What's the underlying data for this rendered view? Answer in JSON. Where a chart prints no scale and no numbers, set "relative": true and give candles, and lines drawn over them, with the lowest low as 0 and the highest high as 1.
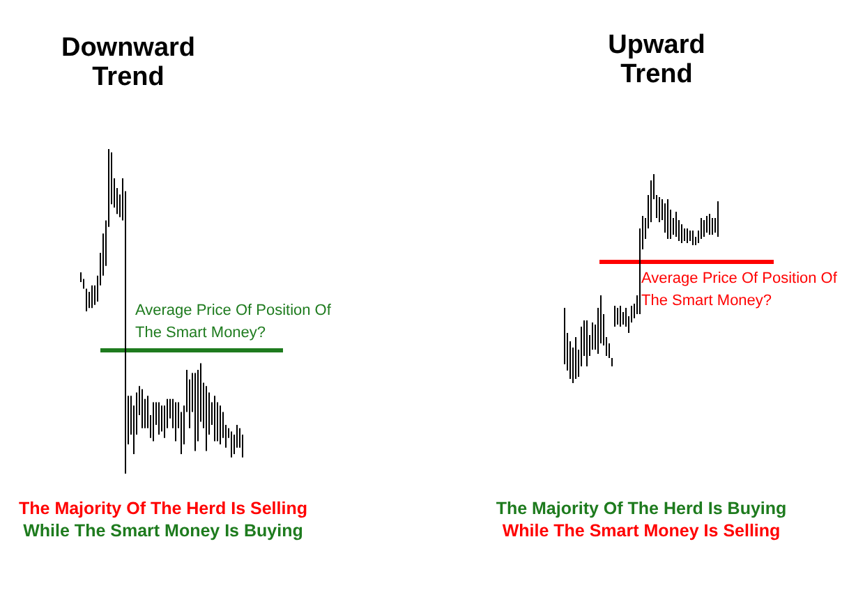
{
  "chart_data": [
    {
      "type": "candlestick",
      "title": "Downward Trend",
      "relative": true,
      "color": "#000000",
      "categories": [
        null,
        null,
        null,
        null,
        null,
        null,
        null,
        null,
        null,
        null,
        null,
        null,
        null,
        null,
        null,
        null,
        null,
        null,
        null,
        null,
        null,
        null,
        null,
        null,
        null,
        null,
        null,
        null,
        null,
        null,
        null,
        null,
        null,
        null,
        null,
        null,
        null,
        null,
        null,
        null,
        null,
        null,
        null,
        null,
        null,
        null,
        null,
        null,
        null,
        null,
        null,
        null,
        null,
        null,
        null,
        null,
        null,
        null,
        null
      ],
      "ohlc": [
        [
          0.59,
          0.62,
          0.59,
          0.62
        ],
        [
          0.57,
          0.6,
          0.57,
          0.6
        ],
        [
          0.5,
          0.57,
          0.5,
          0.57
        ],
        [
          0.51,
          0.56,
          0.51,
          0.56
        ],
        [
          0.51,
          0.58,
          0.51,
          0.58
        ],
        [
          0.52,
          0.58,
          0.52,
          0.58
        ],
        [
          0.53,
          0.61,
          0.53,
          0.61
        ],
        [
          0.58,
          0.68,
          0.58,
          0.68
        ],
        [
          0.61,
          0.74,
          0.61,
          0.74
        ],
        [
          0.64,
          0.78,
          0.64,
          0.78
        ],
        [
          0.76,
          1.0,
          0.76,
          1.0
        ],
        [
          0.83,
          0.99,
          0.83,
          0.99
        ],
        [
          0.82,
          0.91,
          0.82,
          0.91
        ],
        [
          0.8,
          0.88,
          0.8,
          0.88
        ],
        [
          0.79,
          0.86,
          0.79,
          0.86
        ],
        [
          0.78,
          0.91,
          0.78,
          0.91
        ],
        [
          0.0,
          0.87,
          0.0,
          0.87
        ],
        [
          0.09,
          0.24,
          0.09,
          0.24
        ],
        [
          0.12,
          0.24,
          0.12,
          0.24
        ],
        [
          0.06,
          0.21,
          0.06,
          0.21
        ],
        [
          0.12,
          0.25,
          0.12,
          0.25
        ],
        [
          0.18,
          0.27,
          0.18,
          0.27
        ],
        [
          0.14,
          0.26,
          0.14,
          0.26
        ],
        [
          0.14,
          0.23,
          0.14,
          0.23
        ],
        [
          0.14,
          0.24,
          0.14,
          0.24
        ],
        [
          0.11,
          0.18,
          0.11,
          0.18
        ],
        [
          0.1,
          0.22,
          0.1,
          0.22
        ],
        [
          0.15,
          0.22,
          0.15,
          0.22
        ],
        [
          0.12,
          0.22,
          0.12,
          0.22
        ],
        [
          0.13,
          0.21,
          0.13,
          0.21
        ],
        [
          0.11,
          0.21,
          0.11,
          0.21
        ],
        [
          0.14,
          0.23,
          0.14,
          0.23
        ],
        [
          0.17,
          0.23,
          0.17,
          0.23
        ],
        [
          0.14,
          0.23,
          0.14,
          0.23
        ],
        [
          0.1,
          0.22,
          0.1,
          0.22
        ],
        [
          0.14,
          0.22,
          0.14,
          0.22
        ],
        [
          0.06,
          0.19,
          0.06,
          0.19
        ],
        [
          0.09,
          0.21,
          0.09,
          0.21
        ],
        [
          0.19,
          0.32,
          0.19,
          0.32
        ],
        [
          0.14,
          0.29,
          0.14,
          0.29
        ],
        [
          0.19,
          0.31,
          0.19,
          0.31
        ],
        [
          0.07,
          0.31,
          0.07,
          0.31
        ],
        [
          0.1,
          0.32,
          0.1,
          0.32
        ],
        [
          0.16,
          0.34,
          0.16,
          0.34
        ],
        [
          0.14,
          0.28,
          0.14,
          0.28
        ],
        [
          0.07,
          0.27,
          0.07,
          0.27
        ],
        [
          0.12,
          0.25,
          0.12,
          0.25
        ],
        [
          0.15,
          0.22,
          0.15,
          0.22
        ],
        [
          0.1,
          0.24,
          0.1,
          0.24
        ],
        [
          0.1,
          0.22,
          0.1,
          0.22
        ],
        [
          0.09,
          0.21,
          0.09,
          0.21
        ],
        [
          0.11,
          0.19,
          0.11,
          0.19
        ],
        [
          0.08,
          0.15,
          0.08,
          0.15
        ],
        [
          0.11,
          0.14,
          0.11,
          0.14
        ],
        [
          0.05,
          0.13,
          0.05,
          0.13
        ],
        [
          0.06,
          0.12,
          0.06,
          0.12
        ],
        [
          0.08,
          0.15,
          0.08,
          0.15
        ],
        [
          0.08,
          0.14,
          0.08,
          0.14
        ],
        [
          0.05,
          0.12,
          0.05,
          0.12
        ]
      ],
      "ref_lines": [
        {
          "axis": "y",
          "value": 0.38,
          "label": "Average Price Of Position Of The Smart Money?",
          "color": "#1e7b1e"
        }
      ],
      "annotations": [
        "The Majority Of The Herd Is Selling",
        "While The Smart Money Is Buying"
      ]
    },
    {
      "type": "candlestick",
      "title": "Upward Trend",
      "relative": true,
      "color": "#000000",
      "categories": [
        null,
        null,
        null,
        null,
        null,
        null,
        null,
        null,
        null,
        null,
        null,
        null,
        null,
        null,
        null,
        null,
        null,
        null,
        null,
        null,
        null,
        null,
        null,
        null,
        null,
        null,
        null,
        null,
        null,
        null,
        null,
        null,
        null,
        null,
        null,
        null,
        null,
        null,
        null,
        null,
        null,
        null,
        null,
        null,
        null,
        null,
        null,
        null,
        null,
        null,
        null,
        null,
        null,
        null,
        null,
        null
      ],
      "ohlc": [
        [
          0.09,
          0.36,
          0.09,
          0.36
        ],
        [
          0.06,
          0.24,
          0.06,
          0.24
        ],
        [
          0.02,
          0.2,
          0.02,
          0.2
        ],
        [
          0.0,
          0.17,
          0.0,
          0.17
        ],
        [
          0.02,
          0.22,
          0.02,
          0.22
        ],
        [
          0.03,
          0.16,
          0.03,
          0.16
        ],
        [
          0.08,
          0.27,
          0.08,
          0.27
        ],
        [
          0.13,
          0.3,
          0.13,
          0.3
        ],
        [
          0.08,
          0.3,
          0.08,
          0.3
        ],
        [
          0.13,
          0.23,
          0.13,
          0.23
        ],
        [
          0.16,
          0.29,
          0.16,
          0.29
        ],
        [
          0.16,
          0.28,
          0.16,
          0.28
        ],
        [
          0.14,
          0.36,
          0.14,
          0.36
        ],
        [
          0.19,
          0.42,
          0.19,
          0.42
        ],
        [
          0.18,
          0.33,
          0.18,
          0.33
        ],
        [
          0.13,
          0.22,
          0.13,
          0.22
        ],
        [
          0.12,
          0.19,
          0.12,
          0.19
        ],
        [
          0.08,
          0.12,
          0.08,
          0.12
        ],
        [
          0.27,
          0.37,
          0.27,
          0.37
        ],
        [
          0.28,
          0.36,
          0.28,
          0.36
        ],
        [
          0.27,
          0.37,
          0.27,
          0.37
        ],
        [
          0.28,
          0.34,
          0.28,
          0.34
        ],
        [
          0.27,
          0.36,
          0.27,
          0.36
        ],
        [
          0.24,
          0.32,
          0.24,
          0.32
        ],
        [
          0.29,
          0.37,
          0.29,
          0.37
        ],
        [
          0.31,
          0.38,
          0.31,
          0.38
        ],
        [
          0.33,
          0.42,
          0.33,
          0.42
        ],
        [
          0.33,
          0.74,
          0.33,
          0.74
        ],
        [
          0.64,
          0.8,
          0.64,
          0.8
        ],
        [
          0.69,
          0.79,
          0.69,
          0.79
        ],
        [
          0.74,
          0.9,
          0.74,
          0.9
        ],
        [
          0.77,
          0.97,
          0.77,
          0.97
        ],
        [
          0.88,
          1.0,
          0.88,
          1.0
        ],
        [
          0.79,
          0.9,
          0.79,
          0.9
        ],
        [
          0.77,
          0.89,
          0.77,
          0.89
        ],
        [
          0.78,
          0.88,
          0.78,
          0.88
        ],
        [
          0.72,
          0.86,
          0.72,
          0.86
        ],
        [
          0.69,
          0.88,
          0.69,
          0.88
        ],
        [
          0.69,
          0.83,
          0.69,
          0.83
        ],
        [
          0.71,
          0.79,
          0.71,
          0.79
        ],
        [
          0.7,
          0.82,
          0.7,
          0.82
        ],
        [
          0.68,
          0.78,
          0.68,
          0.78
        ],
        [
          0.67,
          0.76,
          0.67,
          0.76
        ],
        [
          0.68,
          0.74,
          0.68,
          0.74
        ],
        [
          0.67,
          0.74,
          0.67,
          0.74
        ],
        [
          0.68,
          0.73,
          0.68,
          0.73
        ],
        [
          0.66,
          0.73,
          0.66,
          0.73
        ],
        [
          0.66,
          0.7,
          0.66,
          0.7
        ],
        [
          0.67,
          0.73,
          0.67,
          0.73
        ],
        [
          0.69,
          0.79,
          0.69,
          0.79
        ],
        [
          0.7,
          0.78,
          0.7,
          0.78
        ],
        [
          0.72,
          0.8,
          0.72,
          0.8
        ],
        [
          0.71,
          0.81,
          0.71,
          0.81
        ],
        [
          0.71,
          0.79,
          0.71,
          0.79
        ],
        [
          0.72,
          0.79,
          0.72,
          0.79
        ],
        [
          0.7,
          0.87,
          0.7,
          0.87
        ]
      ],
      "ref_lines": [
        {
          "axis": "y",
          "value": 0.58,
          "label": "Average Price Of Position Of The Smart Money?",
          "color": "#ff0000"
        }
      ],
      "annotations": [
        "The Majority Of The Herd Is Buying",
        "While The Smart Money Is Selling"
      ]
    }
  ]
}
